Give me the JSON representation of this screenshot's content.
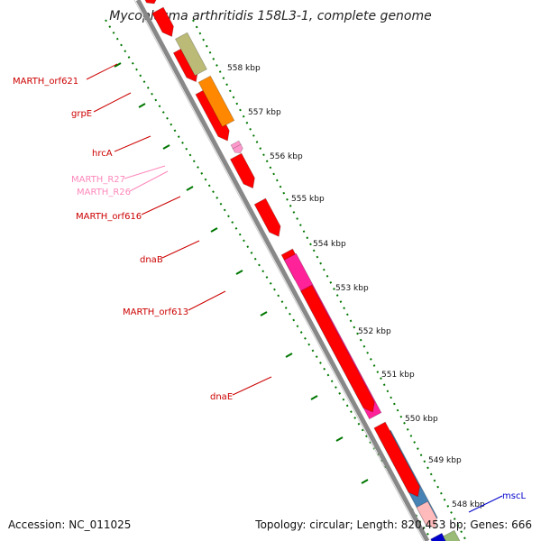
{
  "title": "Mycoplasma arthritidis 158L3-1, complete genome",
  "footer": {
    "accession": "Accession: NC_011025",
    "topology": "Topology: circular; Length: 820,453 bp; Genes: 666"
  },
  "colors": {
    "gene_red": "#ff0000",
    "label_red": "#cc0000",
    "rna_pink": "#ff99cc",
    "grpE_olive": "#bbbb77",
    "hrcA_orange": "#ff8800",
    "dnaB_magenta": "#ff2299",
    "dnaE_steel": "#4682b4",
    "mscL_blue": "#0000cc",
    "tick_green": "#007700",
    "backbone_gray": "#888888"
  },
  "scale_labels": [
    "558 kbp",
    "557 kbp",
    "556 kbp",
    "555 kbp",
    "554 kbp",
    "553 kbp",
    "552 kbp",
    "551 kbp",
    "550 kbp",
    "549 kbp",
    "548 kbp"
  ],
  "gene_labels": [
    {
      "name": "MARTH_orf621",
      "color": "#cc0000"
    },
    {
      "name": "grpE",
      "color": "#cc0000"
    },
    {
      "name": "hrcA",
      "color": "#cc0000"
    },
    {
      "name": "MARTH_R27",
      "color": "#ff88bb"
    },
    {
      "name": "MARTH_R26",
      "color": "#ff88bb"
    },
    {
      "name": "MARTH_orf616",
      "color": "#cc0000"
    },
    {
      "name": "dnaB",
      "color": "#cc0000"
    },
    {
      "name": "MARTH_orf613",
      "color": "#cc0000"
    },
    {
      "name": "dnaE",
      "color": "#cc0000"
    },
    {
      "name": "mscL",
      "color": "#0000cc"
    }
  ]
}
